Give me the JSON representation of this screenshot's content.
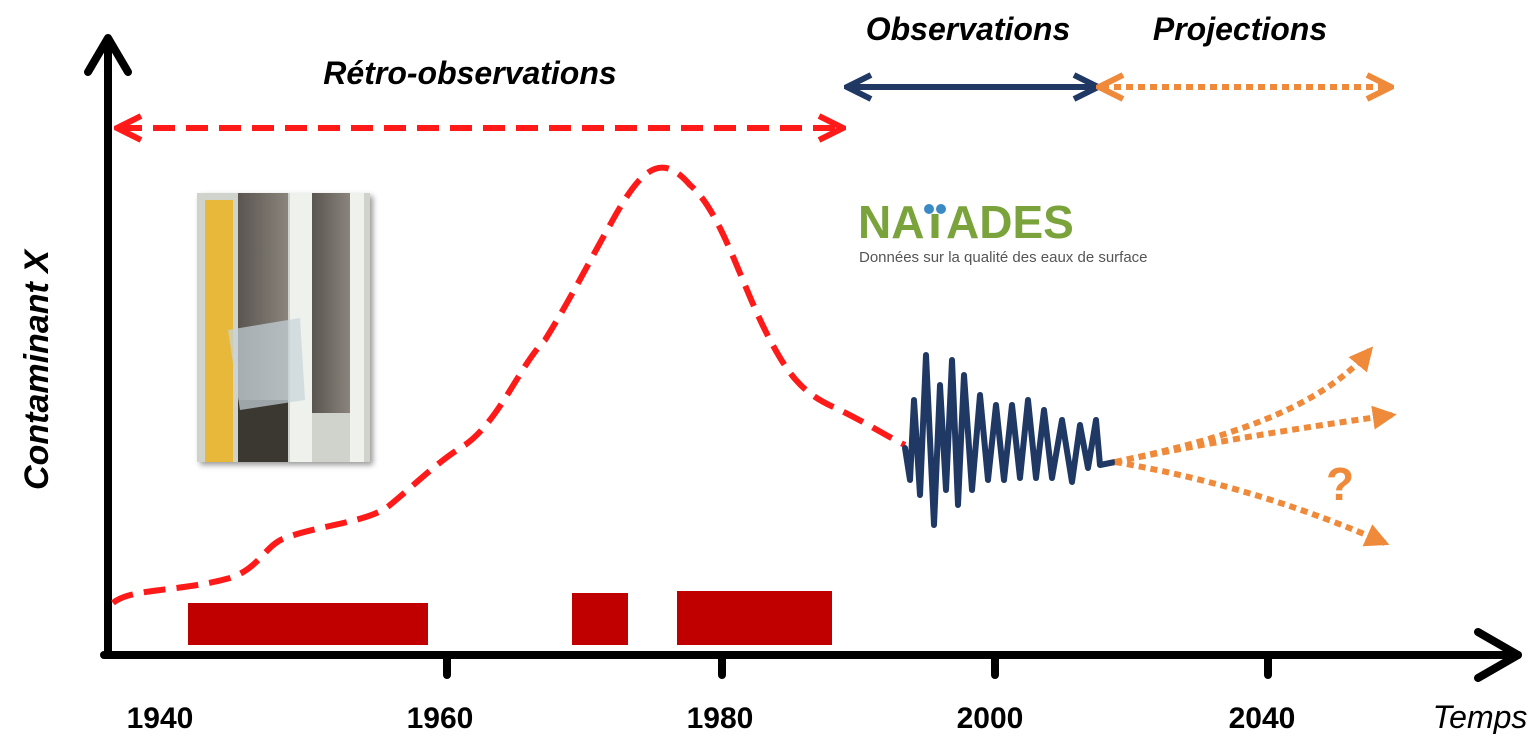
{
  "labels": {
    "retro": "Rétro-observations",
    "observations": "Observations",
    "projections": "Projections",
    "y_axis": "Contaminant X",
    "x_axis": "Temps",
    "question": "?"
  },
  "x_ticks": [
    "1940",
    "1960",
    "1980",
    "2000",
    "2040"
  ],
  "logo": {
    "name_left": "NA",
    "name_right": "ADES",
    "subtitle": "Données sur la qualité des eaux de surface"
  }
}
